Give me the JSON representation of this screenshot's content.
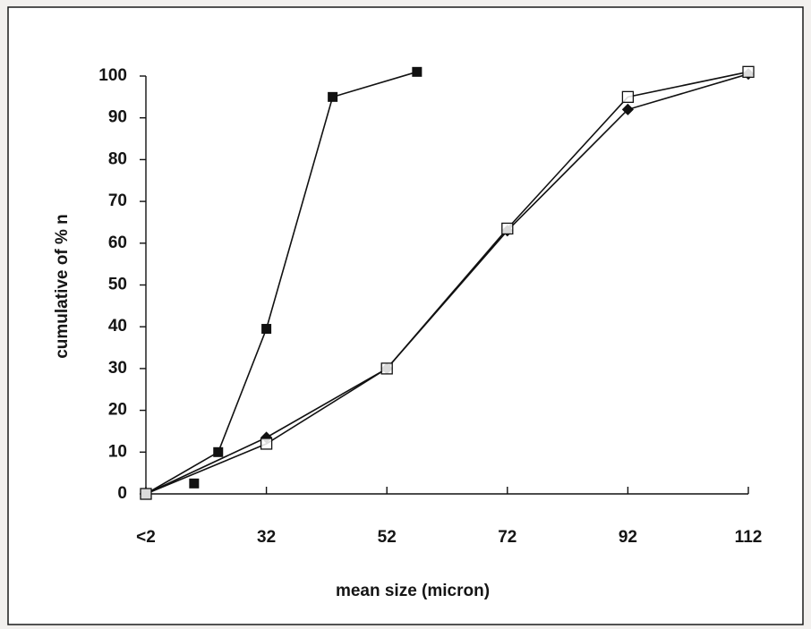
{
  "chart_data": {
    "type": "line",
    "title": "",
    "xlabel": "mean size (micron)",
    "ylabel": "cumulative of % n",
    "x_tick_labels": [
      "<2",
      "32",
      "52",
      "72",
      "92",
      "112"
    ],
    "x_tick_values": [
      12,
      32,
      52,
      72,
      92,
      112
    ],
    "xlim": [
      12,
      112
    ],
    "ylim": [
      0,
      100
    ],
    "y_ticks": [
      0,
      10,
      20,
      30,
      40,
      50,
      60,
      70,
      80,
      90,
      100
    ],
    "grid": false,
    "legend": "none",
    "series": [
      {
        "marker": "filled-square",
        "line": true,
        "color": "#111111",
        "x": [
          12,
          24,
          32,
          43,
          57
        ],
        "y": [
          0,
          10,
          39.5,
          95,
          101
        ]
      },
      {
        "marker": "filled-square",
        "line": false,
        "color": "#111111",
        "x": [
          20
        ],
        "y": [
          2.5
        ]
      },
      {
        "marker": "filled-diamond",
        "line": true,
        "color": "#111111",
        "x": [
          12,
          32,
          52,
          72,
          92,
          112
        ],
        "y": [
          0,
          13.5,
          30,
          63,
          92,
          100.5
        ]
      },
      {
        "marker": "open-square",
        "line": true,
        "color": "#111111",
        "x": [
          12,
          32,
          52,
          72,
          92,
          112
        ],
        "y": [
          0,
          12,
          30,
          63.5,
          95,
          101
        ]
      }
    ]
  }
}
